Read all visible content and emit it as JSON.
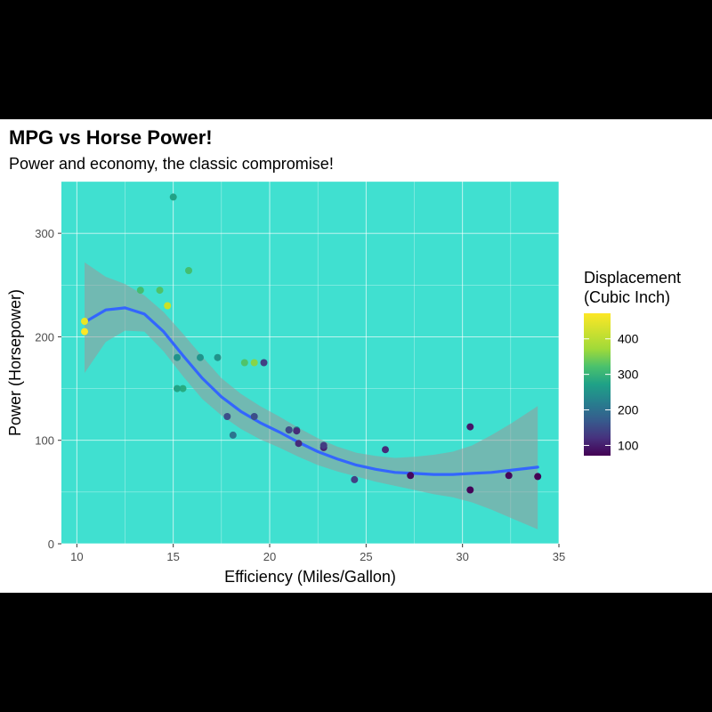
{
  "chart_data": {
    "type": "scatter",
    "title": "MPG vs Horse Power!",
    "subtitle": "Power and economy, the classic compromise!",
    "xlabel": "Efficiency (Miles/Gallon)",
    "ylabel": "Power (Horsepower)",
    "xlim": [
      9.2,
      35.0
    ],
    "ylim": [
      0,
      350
    ],
    "xticks": [
      10,
      15,
      20,
      25,
      30,
      35
    ],
    "yticks": [
      0,
      100,
      200,
      300
    ],
    "grid": true,
    "panel_background": "#40E0D0",
    "legend": {
      "title_line1": "Displacement",
      "title_line2": "(Cubic Inch)",
      "placement": "right",
      "range": [
        71.1,
        472
      ],
      "ticks": [
        100,
        200,
        300,
        400
      ],
      "colormap": "viridis"
    },
    "points": [
      {
        "x": 21.0,
        "y": 110,
        "disp": 160
      },
      {
        "x": 21.0,
        "y": 110,
        "disp": 160
      },
      {
        "x": 22.8,
        "y": 93,
        "disp": 108
      },
      {
        "x": 21.4,
        "y": 110,
        "disp": 258
      },
      {
        "x": 18.7,
        "y": 175,
        "disp": 360
      },
      {
        "x": 18.1,
        "y": 105,
        "disp": 225
      },
      {
        "x": 14.3,
        "y": 245,
        "disp": 360
      },
      {
        "x": 24.4,
        "y": 62,
        "disp": 146.7
      },
      {
        "x": 22.8,
        "y": 95,
        "disp": 140.8
      },
      {
        "x": 19.2,
        "y": 123,
        "disp": 167.6
      },
      {
        "x": 17.8,
        "y": 123,
        "disp": 167.6
      },
      {
        "x": 16.4,
        "y": 180,
        "disp": 275.8
      },
      {
        "x": 17.3,
        "y": 180,
        "disp": 275.8
      },
      {
        "x": 15.2,
        "y": 180,
        "disp": 275.8
      },
      {
        "x": 10.4,
        "y": 205,
        "disp": 472
      },
      {
        "x": 10.4,
        "y": 215,
        "disp": 460
      },
      {
        "x": 14.7,
        "y": 230,
        "disp": 440
      },
      {
        "x": 32.4,
        "y": 66,
        "disp": 78.7
      },
      {
        "x": 30.4,
        "y": 52,
        "disp": 75.7
      },
      {
        "x": 33.9,
        "y": 65,
        "disp": 71.1
      },
      {
        "x": 21.5,
        "y": 97,
        "disp": 120.1
      },
      {
        "x": 15.5,
        "y": 150,
        "disp": 318
      },
      {
        "x": 15.2,
        "y": 150,
        "disp": 304
      },
      {
        "x": 13.3,
        "y": 245,
        "disp": 350
      },
      {
        "x": 19.2,
        "y": 175,
        "disp": 400
      },
      {
        "x": 27.3,
        "y": 66,
        "disp": 79
      },
      {
        "x": 26.0,
        "y": 91,
        "disp": 120.3
      },
      {
        "x": 30.4,
        "y": 113,
        "disp": 95.1
      },
      {
        "x": 15.8,
        "y": 264,
        "disp": 351
      },
      {
        "x": 19.7,
        "y": 175,
        "disp": 145
      },
      {
        "x": 15.0,
        "y": 335,
        "disp": 301
      },
      {
        "x": 21.4,
        "y": 109,
        "disp": 121
      }
    ],
    "smooth": {
      "x": [
        10.4,
        11.5,
        12.5,
        13.5,
        14.5,
        15.5,
        16.5,
        17.5,
        18.5,
        19.5,
        20.5,
        21.5,
        22.5,
        23.5,
        24.5,
        25.5,
        26.5,
        27.5,
        28.5,
        29.5,
        30.5,
        31.5,
        32.5,
        33.9
      ],
      "y": [
        214,
        226,
        228,
        222,
        205,
        182,
        160,
        142,
        128,
        117,
        108,
        98,
        89,
        82,
        76,
        72,
        69,
        68,
        67,
        67,
        68,
        69,
        71,
        74
      ],
      "lower": [
        165,
        195,
        206,
        205,
        186,
        162,
        140,
        124,
        111,
        101,
        93,
        84,
        76,
        70,
        65,
        60,
        56,
        52,
        48,
        45,
        40,
        33,
        25,
        14
      ],
      "upper": [
        272,
        258,
        251,
        240,
        224,
        203,
        181,
        160,
        145,
        133,
        123,
        112,
        102,
        94,
        88,
        85,
        83,
        84,
        86,
        89,
        95,
        105,
        116,
        133
      ]
    }
  }
}
